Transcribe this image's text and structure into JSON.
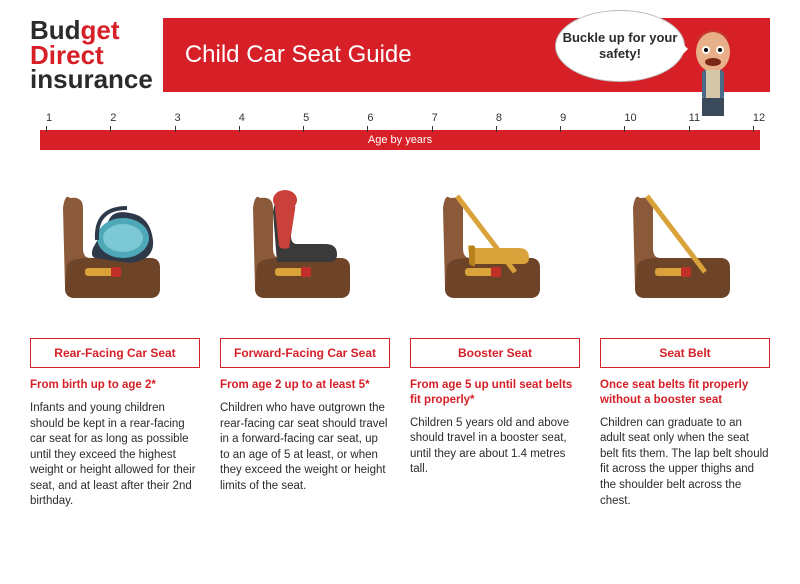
{
  "logo": {
    "line1_a": "Bud",
    "line1_b": "get",
    "line2": "Direct",
    "line3": "insurance"
  },
  "banner": {
    "title": "Child Car Seat Guide",
    "bubble": "Buckle up for your safety!"
  },
  "timeline": {
    "ticks": [
      "1",
      "2",
      "3",
      "4",
      "5",
      "6",
      "7",
      "8",
      "9",
      "10",
      "11",
      "12"
    ],
    "label": "Age by years"
  },
  "colors": {
    "red": "#d61f26",
    "seat_brown": "#8a5a3a",
    "seat_shadow": "#6e4428",
    "infant_teal": "#4ea8b8",
    "infant_dark": "#2e3a4a",
    "forward_red": "#c9413a",
    "forward_dark": "#3a3a3a",
    "booster_gold": "#d9a23a",
    "belt": "#d9a23a",
    "buckle": "#c03028"
  },
  "stages": [
    {
      "title": "Rear-Facing Car Seat",
      "range": "From birth up to age 2*",
      "desc": "Infants and young children should be kept in a rear-facing car seat for as long as possible until they exceed the highest weight or height allowed for their seat, and at least after their 2nd birthday."
    },
    {
      "title": "Forward-Facing Car Seat",
      "range": "From age 2 up to at least 5*",
      "desc": "Children who have outgrown the rear-facing car seat should travel in a forward-facing car seat, up to an age of 5 at least, or when they exceed the weight or height limits of the seat."
    },
    {
      "title": "Booster Seat",
      "range": "From age 5 up until seat belts fit properly*",
      "desc": "Children 5 years old and above should travel in a booster seat, until they are about 1.4 metres tall."
    },
    {
      "title": "Seat Belt",
      "range": "Once seat belts fit properly without a booster seat",
      "desc": "Children can graduate to an adult seat only when the seat belt fits them. The lap belt should fit across the upper thighs and the shoulder belt across the chest."
    }
  ]
}
